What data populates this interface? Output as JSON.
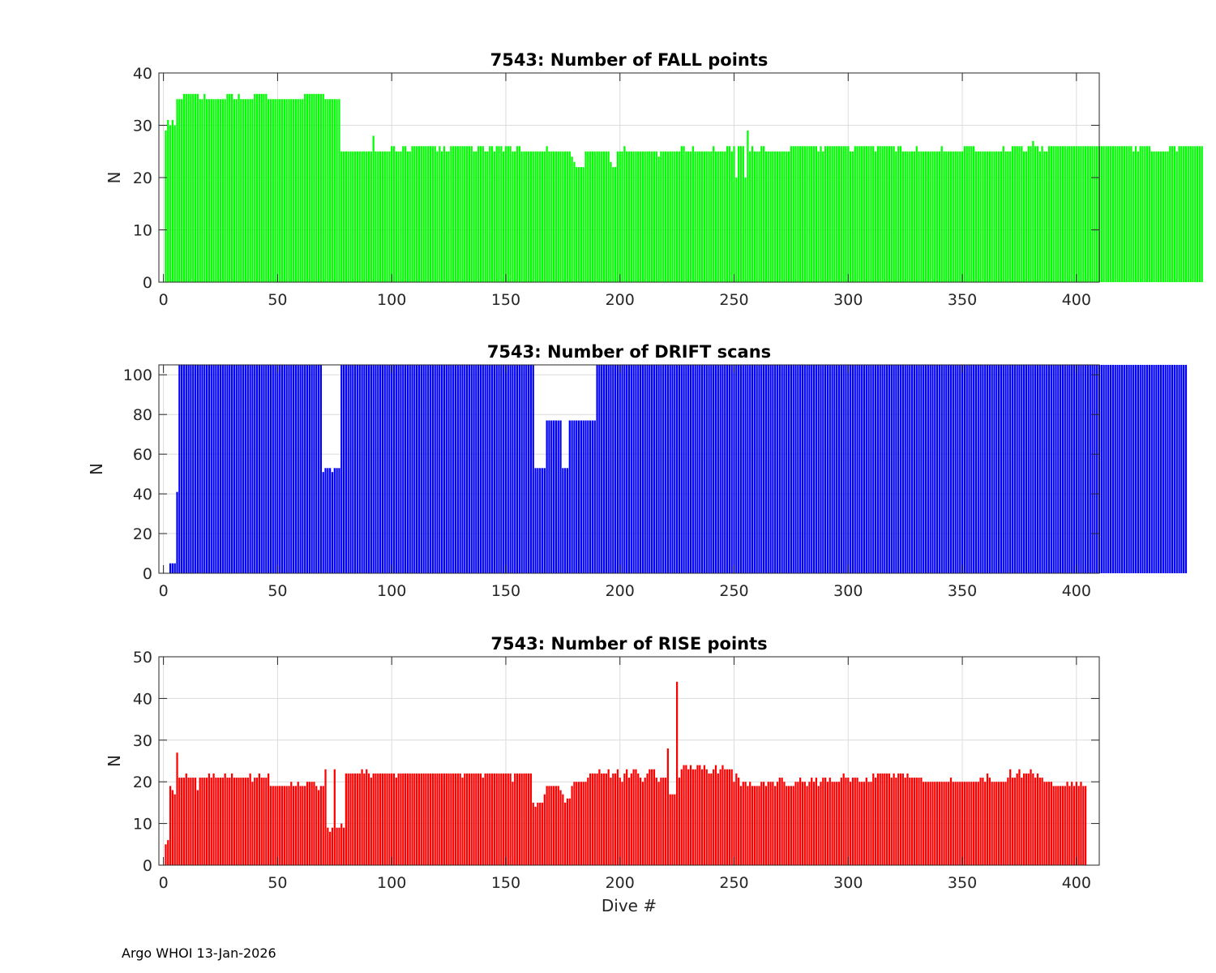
{
  "figure": {
    "footer": "Argo WHOI 13-Jan-2026",
    "bar_gap_color": "#ffffff",
    "axis_color": "#262626",
    "grid_color": "#dcdcdc"
  },
  "chart_data": [
    {
      "type": "bar",
      "title": "7543: Number of FALL points",
      "xlabel": "",
      "ylabel": "N",
      "color": "#00ff00",
      "xlim": [
        -2,
        410
      ],
      "ylim": [
        0,
        40
      ],
      "xticks": [
        0,
        50,
        100,
        150,
        200,
        250,
        300,
        350,
        400
      ],
      "yticks": [
        0,
        10,
        20,
        30,
        40
      ],
      "grid": true,
      "x_start": 1,
      "values": [
        29,
        31,
        30,
        31,
        30,
        35,
        35,
        35,
        36,
        36,
        36,
        36,
        36,
        36,
        36,
        35,
        35,
        36,
        35,
        35,
        35,
        35,
        35,
        35,
        35,
        35,
        35,
        36,
        36,
        36,
        35,
        35,
        36,
        35,
        35,
        35,
        35,
        35,
        35,
        36,
        36,
        36,
        36,
        36,
        36,
        35,
        35,
        35,
        35,
        35,
        35,
        35,
        35,
        35,
        35,
        35,
        35,
        35,
        35,
        35,
        35,
        36,
        36,
        36,
        36,
        36,
        36,
        36,
        36,
        36,
        35,
        35,
        35,
        35,
        35,
        35,
        35,
        25,
        25,
        25,
        25,
        25,
        25,
        25,
        25,
        25,
        25,
        25,
        25,
        25,
        25,
        28,
        25,
        25,
        25,
        25,
        25,
        25,
        25,
        26,
        26,
        25,
        25,
        25,
        26,
        26,
        25,
        25,
        26,
        26,
        26,
        26,
        26,
        26,
        26,
        26,
        26,
        26,
        26,
        25,
        26,
        25,
        26,
        25,
        25,
        26,
        26,
        26,
        26,
        26,
        26,
        26,
        26,
        26,
        26,
        25,
        25,
        26,
        26,
        26,
        25,
        25,
        26,
        26,
        25,
        26,
        26,
        26,
        25,
        26,
        26,
        26,
        25,
        25,
        26,
        26,
        25,
        25,
        25,
        25,
        25,
        25,
        25,
        25,
        25,
        25,
        25,
        26,
        25,
        25,
        25,
        25,
        25,
        25,
        25,
        25,
        25,
        25,
        24,
        23,
        22,
        22,
        22,
        22,
        25,
        25,
        25,
        25,
        25,
        25,
        25,
        25,
        25,
        25,
        25,
        23,
        22,
        22,
        25,
        25,
        25,
        26,
        25,
        25,
        25,
        25,
        25,
        25,
        25,
        25,
        25,
        25,
        25,
        25,
        25,
        25,
        24,
        25,
        25,
        25,
        25,
        25,
        25,
        25,
        25,
        25,
        26,
        26,
        25,
        25,
        25,
        26,
        25,
        25,
        25,
        25,
        25,
        25,
        25,
        25,
        26,
        25,
        25,
        25,
        25,
        25,
        26,
        26,
        25,
        26,
        20,
        26,
        26,
        26,
        20,
        29,
        25,
        26,
        25,
        25,
        25,
        26,
        26,
        25,
        25,
        25,
        25,
        25,
        25,
        25,
        25,
        25,
        25,
        25,
        26,
        26,
        26,
        26,
        26,
        26,
        26,
        26,
        26,
        26,
        26,
        26,
        25,
        26,
        25,
        26,
        26,
        26,
        26,
        26,
        26,
        26,
        26,
        26,
        26,
        26,
        25,
        25,
        26,
        26,
        26,
        26,
        26,
        26,
        26,
        26,
        26,
        25,
        26,
        26,
        26,
        26,
        26,
        26,
        26,
        26,
        25,
        26,
        26,
        25,
        25,
        25,
        25,
        25,
        25,
        26,
        25,
        25,
        25,
        25,
        25,
        25,
        25,
        25,
        25,
        25,
        26,
        25,
        25,
        25,
        25,
        25,
        25,
        25,
        25,
        25,
        26,
        26,
        26,
        26,
        26,
        25,
        25,
        25,
        25,
        25,
        25,
        25,
        25,
        25,
        25,
        25,
        25,
        26,
        25,
        25,
        25,
        26,
        26,
        26,
        26,
        26,
        25,
        25,
        26,
        26,
        27,
        26,
        26,
        25,
        26,
        25,
        25,
        26,
        26,
        26,
        26,
        26,
        26,
        26,
        26,
        26,
        26,
        26,
        26,
        26,
        26,
        26,
        26,
        26,
        26,
        26,
        26,
        26,
        26,
        26,
        26,
        26,
        26,
        26,
        26,
        26,
        26,
        26,
        26,
        26,
        26,
        26,
        26,
        26,
        25,
        26,
        25,
        26,
        26,
        26,
        26,
        26,
        25,
        25,
        25,
        25,
        25,
        25,
        25,
        25,
        26,
        26,
        26,
        25,
        26,
        26,
        26,
        26,
        26,
        26,
        26,
        26,
        26,
        26,
        26
      ]
    },
    {
      "type": "bar",
      "title": "7543: Number of DRIFT scans",
      "xlabel": "",
      "ylabel": "N",
      "color": "#0000ff",
      "xlim": [
        -2,
        410
      ],
      "ylim": [
        0,
        105
      ],
      "xticks": [
        0,
        50,
        100,
        150,
        200,
        250,
        300,
        350,
        400
      ],
      "yticks": [
        0,
        20,
        40,
        60,
        80,
        100
      ],
      "grid": true,
      "x_start": 1,
      "values": [
        0,
        0,
        5,
        5,
        5,
        41,
        105,
        105,
        105,
        105,
        105,
        105,
        105,
        105,
        105,
        105,
        105,
        105,
        105,
        105,
        105,
        105,
        105,
        105,
        105,
        105,
        105,
        105,
        105,
        105,
        105,
        105,
        105,
        105,
        105,
        105,
        105,
        105,
        105,
        105,
        105,
        105,
        105,
        105,
        105,
        105,
        105,
        105,
        105,
        105,
        105,
        105,
        105,
        105,
        105,
        105,
        105,
        105,
        105,
        105,
        105,
        105,
        105,
        105,
        105,
        105,
        105,
        105,
        105,
        51,
        53,
        53,
        53,
        51,
        53,
        53,
        53,
        105,
        105,
        105,
        105,
        105,
        105,
        105,
        105,
        105,
        105,
        105,
        105,
        105,
        105,
        105,
        105,
        105,
        105,
        105,
        105,
        105,
        105,
        105,
        105,
        105,
        105,
        105,
        105,
        105,
        105,
        105,
        105,
        105,
        105,
        105,
        105,
        105,
        105,
        105,
        105,
        105,
        105,
        105,
        105,
        105,
        105,
        105,
        105,
        105,
        105,
        105,
        105,
        105,
        105,
        105,
        105,
        105,
        105,
        105,
        105,
        105,
        105,
        105,
        105,
        105,
        105,
        105,
        105,
        105,
        105,
        105,
        105,
        105,
        105,
        105,
        105,
        105,
        105,
        105,
        105,
        105,
        105,
        105,
        105,
        105,
        53,
        53,
        53,
        53,
        53,
        77,
        77,
        77,
        77,
        77,
        77,
        77,
        53,
        53,
        53,
        77,
        77,
        77,
        77,
        77,
        77,
        77,
        77,
        77,
        77,
        77,
        77,
        105,
        105,
        105,
        105,
        105,
        105,
        105,
        105,
        105,
        105,
        105,
        105,
        105,
        105,
        105,
        105,
        105,
        105,
        105,
        105,
        105,
        105,
        105,
        105,
        105,
        105,
        105,
        105,
        105,
        105,
        105,
        105,
        105,
        105,
        105,
        105,
        105,
        105,
        105,
        105,
        105,
        105,
        105,
        105,
        105,
        105,
        105,
        105,
        105,
        105,
        105,
        105,
        105,
        105,
        105,
        105,
        105,
        105,
        105,
        105,
        105,
        105,
        105,
        105,
        105,
        105,
        105,
        105,
        105,
        105,
        105,
        105,
        105,
        105,
        105,
        105,
        105,
        105,
        105,
        105,
        105,
        105,
        105,
        105,
        105,
        105,
        105,
        105,
        105,
        105,
        105,
        105,
        105,
        105,
        105,
        105,
        105,
        105,
        105,
        105,
        105,
        105,
        105,
        105,
        105,
        105,
        105,
        105,
        105,
        105,
        105,
        105,
        105,
        105,
        105,
        105,
        105,
        105,
        105,
        105,
        105,
        105,
        105,
        105,
        105,
        105,
        105,
        105,
        105,
        105,
        105,
        105,
        105,
        105,
        105,
        105,
        105,
        105,
        105,
        105,
        105,
        105,
        105,
        105,
        105,
        105,
        105,
        105,
        105,
        105,
        105,
        105,
        105,
        105,
        105,
        105,
        105,
        105,
        105,
        105,
        105,
        105,
        105,
        105,
        105,
        105,
        105,
        105,
        105,
        105,
        105,
        105,
        105,
        105,
        105,
        105,
        105,
        105,
        105,
        105,
        105,
        105,
        105,
        105,
        105,
        105,
        105,
        105,
        105,
        105,
        105,
        105,
        105,
        105,
        105,
        105,
        105,
        105,
        105,
        105,
        105,
        105,
        105,
        105,
        105,
        105,
        105,
        105,
        105,
        105,
        105,
        105,
        105,
        105,
        105,
        105,
        105,
        105,
        105,
        105,
        105,
        105,
        105,
        105,
        105,
        105,
        105,
        105,
        105,
        105,
        105,
        105,
        105,
        105,
        105,
        105,
        105,
        105,
        105,
        105,
        105,
        105,
        105,
        105,
        105,
        105,
        105,
        105,
        105,
        105,
        105,
        105,
        105,
        105,
        105,
        105,
        105,
        105,
        105
      ]
    },
    {
      "type": "bar",
      "title": "7543: Number of RISE points",
      "xlabel": "Dive #",
      "ylabel": "N",
      "color": "#ff0000",
      "xlim": [
        -2,
        410
      ],
      "ylim": [
        0,
        50
      ],
      "xticks": [
        0,
        50,
        100,
        150,
        200,
        250,
        300,
        350,
        400
      ],
      "yticks": [
        0,
        10,
        20,
        30,
        40,
        50
      ],
      "grid": true,
      "x_start": 1,
      "values": [
        5,
        6,
        19,
        18,
        17,
        27,
        21,
        21,
        21,
        22,
        21,
        21,
        21,
        21,
        18,
        21,
        21,
        21,
        21,
        22,
        21,
        22,
        21,
        21,
        21,
        21,
        22,
        21,
        21,
        22,
        21,
        21,
        21,
        21,
        21,
        21,
        21,
        22,
        20,
        21,
        21,
        22,
        21,
        21,
        21,
        22,
        19,
        19,
        19,
        19,
        19,
        19,
        19,
        19,
        19,
        20,
        19,
        19,
        20,
        19,
        19,
        19,
        20,
        20,
        20,
        20,
        19,
        18,
        19,
        19,
        23,
        9,
        8,
        9,
        23,
        9,
        9,
        10,
        9,
        22,
        22,
        22,
        22,
        22,
        22,
        22,
        23,
        22,
        23,
        22,
        21,
        22,
        22,
        22,
        22,
        22,
        22,
        22,
        22,
        22,
        22,
        21,
        22,
        22,
        22,
        22,
        22,
        22,
        22,
        22,
        22,
        22,
        22,
        22,
        22,
        22,
        22,
        22,
        22,
        22,
        22,
        22,
        22,
        22,
        22,
        22,
        22,
        22,
        22,
        22,
        21,
        22,
        22,
        22,
        22,
        22,
        22,
        22,
        22,
        21,
        22,
        22,
        22,
        22,
        22,
        22,
        22,
        22,
        22,
        22,
        22,
        22,
        20,
        22,
        22,
        22,
        22,
        22,
        22,
        22,
        22,
        15,
        14,
        15,
        15,
        15,
        17,
        19,
        19,
        19,
        19,
        19,
        19,
        18,
        17,
        15,
        16,
        16,
        19,
        20,
        20,
        20,
        20,
        20,
        20,
        21,
        22,
        22,
        22,
        22,
        23,
        22,
        22,
        22,
        23,
        21,
        22,
        22,
        23,
        21,
        20,
        22,
        23,
        21,
        22,
        23,
        23,
        22,
        21,
        20,
        21,
        22,
        23,
        23,
        23,
        21,
        20,
        21,
        21,
        21,
        28,
        17,
        17,
        17,
        44,
        21,
        23,
        24,
        24,
        23,
        24,
        23,
        23,
        24,
        24,
        23,
        24,
        23,
        22,
        22,
        23,
        24,
        22,
        23,
        24,
        23,
        23,
        23,
        23,
        20,
        22,
        21,
        19,
        20,
        20,
        19,
        20,
        19,
        19,
        19,
        19,
        20,
        20,
        19,
        20,
        20,
        20,
        19,
        20,
        21,
        21,
        20,
        19,
        19,
        19,
        19,
        20,
        20,
        21,
        20,
        20,
        19,
        20,
        21,
        20,
        21,
        19,
        20,
        21,
        21,
        20,
        21,
        20,
        20,
        20,
        20,
        21,
        22,
        21,
        21,
        20,
        21,
        21,
        21,
        20,
        20,
        20,
        21,
        20,
        20,
        22,
        21,
        22,
        22,
        22,
        22,
        22,
        22,
        21,
        22,
        21,
        22,
        22,
        22,
        21,
        22,
        21,
        21,
        21,
        21,
        21,
        21,
        20,
        20,
        20,
        20,
        20,
        20,
        20,
        20,
        20,
        20,
        20,
        20,
        21,
        20,
        20,
        20,
        20,
        20,
        20,
        20,
        20,
        20,
        20,
        20,
        20,
        21,
        21,
        20,
        22,
        21,
        20,
        20,
        20,
        20,
        20,
        20,
        20,
        21,
        23,
        21,
        21,
        22,
        23,
        21,
        22,
        22,
        22,
        23,
        22,
        21,
        22,
        21,
        21,
        20,
        20,
        20,
        20,
        19,
        19,
        19,
        19,
        19,
        19,
        20,
        19,
        20,
        19,
        20,
        19,
        20,
        19,
        19
      ]
    }
  ]
}
